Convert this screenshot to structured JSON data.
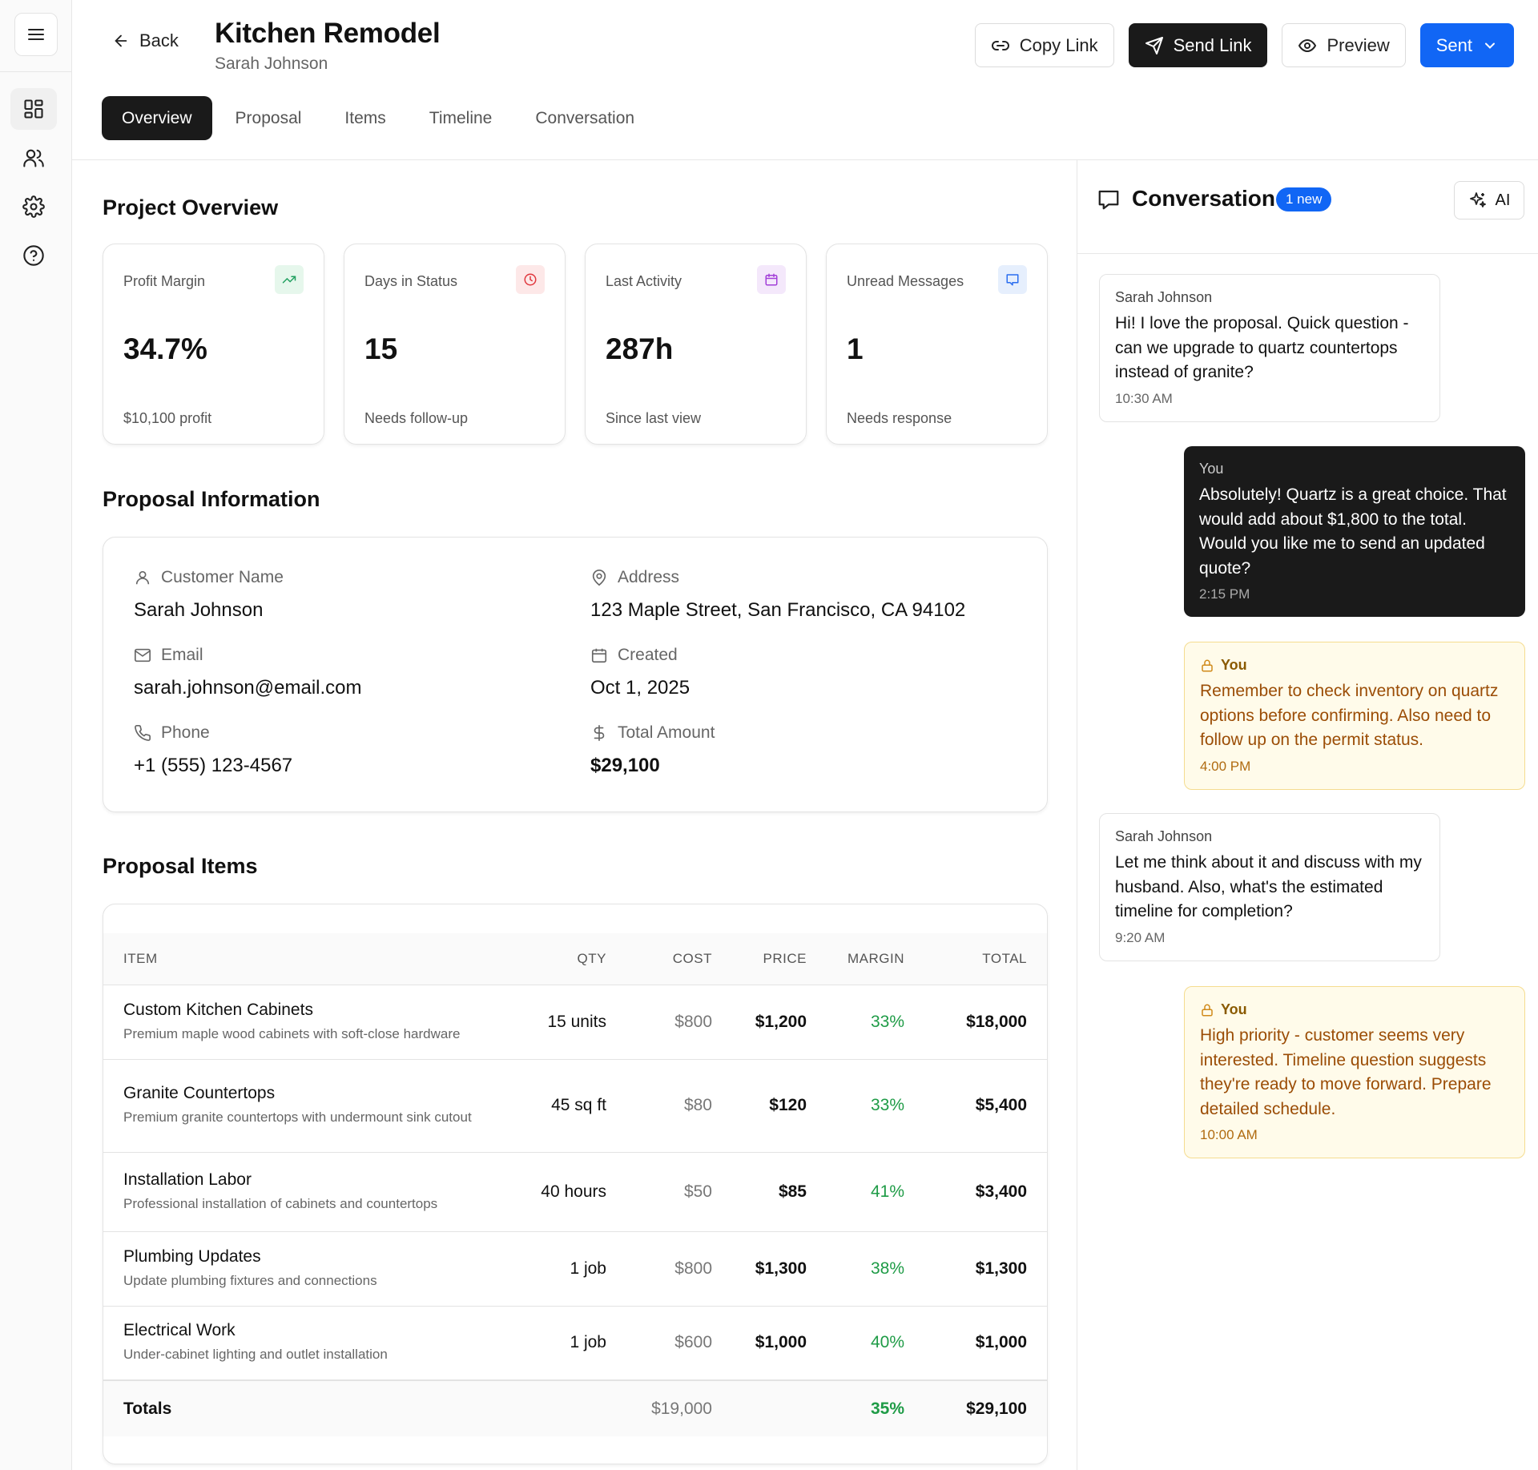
{
  "header": {
    "back_label": "Back",
    "title": "Kitchen Remodel",
    "subtitle": "Sarah Johnson",
    "actions": {
      "copy_link": "Copy Link",
      "send_link": "Send Link",
      "preview": "Preview",
      "status": "Sent"
    }
  },
  "tabs": [
    "Overview",
    "Proposal",
    "Items",
    "Timeline",
    "Conversation"
  ],
  "overview": {
    "title": "Project Overview",
    "stats": [
      {
        "label": "Profit Margin",
        "value": "34.7%",
        "sub": "$10,100 profit",
        "icon": "trending-up-icon",
        "color": "#22a060",
        "bg": "#e6f7ec"
      },
      {
        "label": "Days in Status",
        "value": "15",
        "sub": "Needs follow-up",
        "icon": "clock-icon",
        "color": "#e0383e",
        "bg": "#fde8e8"
      },
      {
        "label": "Last Activity",
        "value": "287h",
        "sub": "Since last view",
        "icon": "calendar-icon",
        "color": "#a23fd8",
        "bg": "#f4e8fb"
      },
      {
        "label": "Unread Messages",
        "value": "1",
        "sub": "Needs response",
        "icon": "message-icon",
        "color": "#2a6ef0",
        "bg": "#e6effd"
      }
    ]
  },
  "info": {
    "title": "Proposal Information",
    "customer_label": "Customer Name",
    "customer": "Sarah Johnson",
    "email_label": "Email",
    "email": "sarah.johnson@email.com",
    "phone_label": "Phone",
    "phone": "+1 (555) 123-4567",
    "address_label": "Address",
    "address": "123 Maple Street, San Francisco, CA 94102",
    "created_label": "Created",
    "created": "Oct 1, 2025",
    "total_label": "Total Amount",
    "total": "$29,100"
  },
  "items": {
    "title": "Proposal Items",
    "headers": [
      "ITEM",
      "QTY",
      "COST",
      "PRICE",
      "MARGIN",
      "TOTAL"
    ],
    "rows": [
      {
        "name": "Custom Kitchen Cabinets",
        "desc": "Premium maple wood cabinets with soft-close hardware",
        "qty": "15 units",
        "cost": "$800",
        "price": "$1,200",
        "margin": "33%",
        "total": "$18,000"
      },
      {
        "name": "Granite Countertops",
        "desc": "Premium granite countertops with undermount sink cutout",
        "qty": "45 sq ft",
        "cost": "$80",
        "price": "$120",
        "margin": "33%",
        "total": "$5,400"
      },
      {
        "name": "Installation Labor",
        "desc": "Professional installation of cabinets and countertops",
        "qty": "40 hours",
        "cost": "$50",
        "price": "$85",
        "margin": "41%",
        "total": "$3,400"
      },
      {
        "name": "Plumbing Updates",
        "desc": "Update plumbing fixtures and connections",
        "qty": "1 job",
        "cost": "$800",
        "price": "$1,300",
        "margin": "38%",
        "total": "$1,300"
      },
      {
        "name": "Electrical Work",
        "desc": "Under-cabinet lighting and outlet installation",
        "qty": "1 job",
        "cost": "$600",
        "price": "$1,000",
        "margin": "40%",
        "total": "$1,000"
      }
    ],
    "totals": {
      "label": "Totals",
      "cost": "$19,000",
      "margin": "35%",
      "total": "$29,100"
    }
  },
  "conversation": {
    "title": "Conversation",
    "badge": "1 new",
    "ai_label": "AI",
    "messages": [
      {
        "type": "in",
        "author": "Sarah Johnson",
        "text": "Hi! I love the proposal. Quick question - can we upgrade to quartz countertops instead of granite?",
        "time": "10:30 AM"
      },
      {
        "type": "out",
        "author": "You",
        "text": "Absolutely! Quartz is a great choice. That would add about $1,800 to the total. Would you like me to send an updated quote?",
        "time": "2:15 PM"
      },
      {
        "type": "note",
        "author": "You",
        "text": "Remember to check inventory on quartz options before confirming. Also need to follow up on the permit status.",
        "time": "4:00 PM"
      },
      {
        "type": "in",
        "author": "Sarah Johnson",
        "text": "Let me think about it and discuss with my husband. Also, what's the estimated timeline for completion?",
        "time": "9:20 AM"
      },
      {
        "type": "note",
        "author": "You",
        "text": "High priority - customer seems very interested. Timeline question suggests they're ready to move forward. Prepare detailed schedule.",
        "time": "10:00 AM"
      }
    ]
  }
}
